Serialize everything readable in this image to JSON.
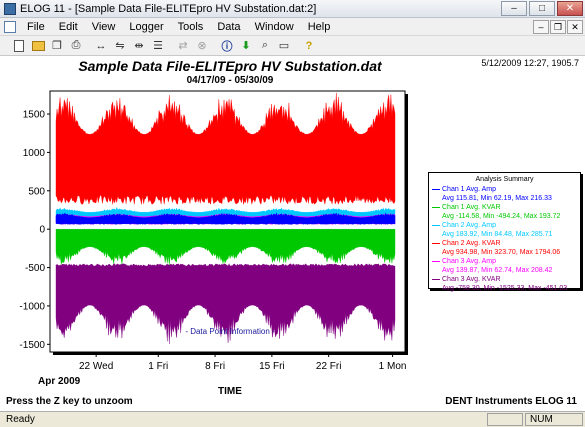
{
  "window": {
    "title": "ELOG 11  - [Sample Data File-ELITEpro HV Substation.dat:2]"
  },
  "menu": [
    "File",
    "Edit",
    "View",
    "Logger",
    "Tools",
    "Data",
    "Window",
    "Help"
  ],
  "header": {
    "title": "Sample Data File-ELITEpro HV Substation.dat",
    "date_range": "04/17/09 - 05/30/09",
    "timestamp": "5/12/2009 12:27, 1905.7"
  },
  "legend": {
    "title": "Analysis Summary",
    "entries": [
      {
        "name": "Chan 1 Avg. Amp",
        "stats": "Avg 115.81, Min 62.19, Max 216.33",
        "color": "#0000ff"
      },
      {
        "name": "Chan 1 Avg. KVAR",
        "stats": "Avg -114.58, Min -494.24, Max 193.72",
        "color": "#00c800"
      },
      {
        "name": "Chan 2 Avg. Amp",
        "stats": "Avg 183.92, Min 84.48, Max 285.71",
        "color": "#00c8ff"
      },
      {
        "name": "Chan 2 Avg. KVAR",
        "stats": "Avg 934.98, Min 323.70, Max 1794.06",
        "color": "#ff0000"
      },
      {
        "name": "Chan 3 Avg. Amp",
        "stats": "Avg 139.87, Min 62.74, Max 208.42",
        "color": "#ff00ff"
      },
      {
        "name": "Chan 3 Avg. KVAR",
        "stats": "Avg -758.30, Min -1525.33, Max -451.03",
        "color": "#800080"
      }
    ]
  },
  "plot_note": "- Data Point Information -",
  "footer": {
    "x_axis_title": "TIME",
    "hint": "Press the Z key to unzoom",
    "brand": "DENT Instruments ELOG 11"
  },
  "status": {
    "text": "Ready",
    "num": "NUM"
  },
  "chart_data": {
    "type": "area",
    "x": [
      "Apr 2009",
      "22 Wed",
      "1 Fri",
      "8 Fri",
      "15 Fri",
      "22 Fri",
      "1 Mon"
    ],
    "y_ticks": [
      1500,
      1000,
      500,
      0,
      -500,
      -1000,
      -1500
    ],
    "ylim": [
      -1600,
      1800
    ],
    "series": [
      {
        "name": "Chan 2 Avg. KVAR",
        "color": "#ff0000",
        "low": 323.7,
        "avg": 934.98,
        "high": 1794.06
      },
      {
        "name": "Chan 2 Avg. Amp",
        "color": "#00c8ff",
        "low": 84.48,
        "avg": 183.92,
        "high": 285.71
      },
      {
        "name": "Chan 3 Avg. Amp",
        "color": "#ff00ff",
        "low": 62.74,
        "avg": 139.87,
        "high": 208.42
      },
      {
        "name": "Chan 1 Avg. Amp",
        "color": "#0000ff",
        "low": 62.19,
        "avg": 115.81,
        "high": 216.33
      },
      {
        "name": "Chan 1 Avg. KVAR",
        "color": "#00c800",
        "low": -494.24,
        "avg": -114.58,
        "high": 193.72
      },
      {
        "name": "Chan 3 Avg. KVAR",
        "color": "#800080",
        "low": -1525.33,
        "avg": -758.3,
        "high": -451.03
      }
    ]
  }
}
